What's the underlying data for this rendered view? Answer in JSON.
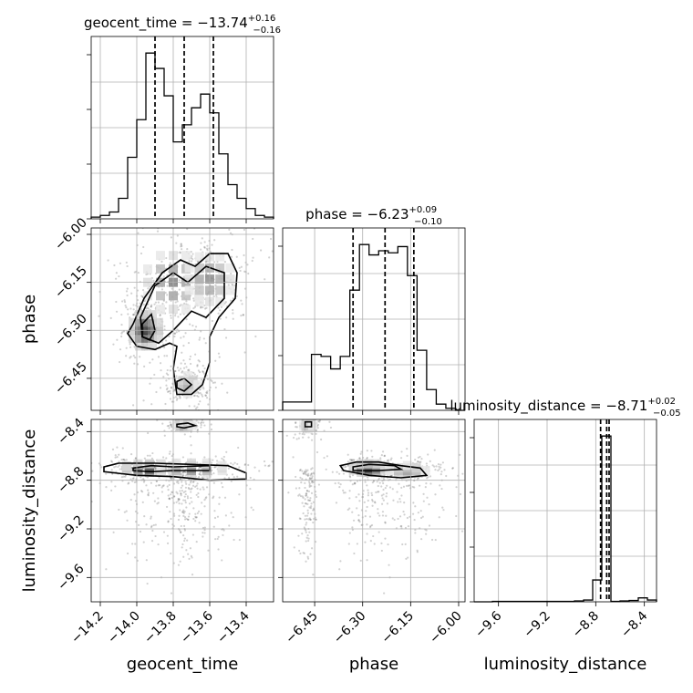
{
  "chart_data": {
    "type": "corner",
    "parameters": [
      {
        "name": "geocent_time",
        "label": "geocent_time",
        "range": [
          -14.25,
          -13.25
        ],
        "ticks": [
          -14.2,
          -14.0,
          -13.8,
          -13.6,
          -13.4
        ],
        "tick_labels": [
          "−14.2",
          "−14.0",
          "−13.8",
          "−13.6",
          "−13.4"
        ],
        "title": {
          "prefix": "geocent_time = ",
          "median": "−13.74",
          "plus": "+0.16",
          "minus": "−0.16"
        },
        "quantiles": [
          -13.9,
          -13.74,
          -13.58
        ],
        "hist_edges": [
          -14.25,
          -14.2,
          -14.15,
          -14.1,
          -14.05,
          -14.0,
          -13.95,
          -13.9,
          -13.85,
          -13.8,
          -13.75,
          -13.7,
          -13.65,
          -13.6,
          -13.55,
          -13.5,
          -13.45,
          -13.4,
          -13.35,
          -13.3,
          -13.25
        ],
        "hist_counts": [
          1,
          2,
          4,
          12,
          36,
          58,
          97,
          88,
          72,
          45,
          55,
          65,
          73,
          62,
          38,
          20,
          12,
          6,
          2,
          1
        ]
      },
      {
        "name": "phase",
        "label": "phase",
        "range": [
          -6.55,
          -5.98
        ],
        "ticks": [
          -6.45,
          -6.3,
          -6.15,
          -6.0
        ],
        "tick_labels": [
          "−6.45",
          "−6.30",
          "−6.15",
          "−6.00"
        ],
        "title": {
          "prefix": "phase = ",
          "median": "−6.23",
          "plus": "+0.09",
          "minus": "−0.10"
        },
        "quantiles": [
          -6.33,
          -6.23,
          -6.14
        ],
        "hist_edges": [
          -6.55,
          -6.52,
          -6.49,
          -6.46,
          -6.43,
          -6.4,
          -6.37,
          -6.34,
          -6.31,
          -6.28,
          -6.25,
          -6.22,
          -6.19,
          -6.16,
          -6.13,
          -6.1,
          -6.07,
          -6.04,
          -6.01,
          -5.98
        ],
        "hist_counts": [
          4,
          4,
          4,
          27,
          26,
          20,
          26,
          58,
          80,
          75,
          77,
          76,
          79,
          65,
          29,
          10,
          3,
          1,
          0
        ]
      },
      {
        "name": "luminosity_distance",
        "label": "luminosity_distance",
        "range": [
          -9.8,
          -8.3
        ],
        "ticks": [
          -9.6,
          -9.2,
          -8.8,
          -8.4
        ],
        "tick_labels": [
          "−9.6",
          "−9.2",
          "−8.8",
          "−8.4"
        ],
        "title": {
          "prefix": "luminosity_distance = ",
          "median": "−8.71",
          "plus": "+0.02",
          "minus": "−0.05"
        },
        "quantiles": [
          -8.76,
          -8.71,
          -8.69
        ],
        "hist_edges": [
          -9.8,
          -9.725,
          -9.65,
          -9.575,
          -9.5,
          -9.425,
          -9.35,
          -9.275,
          -9.2,
          -9.125,
          -9.05,
          -8.975,
          -8.9,
          -8.825,
          -8.75,
          -8.675,
          -8.6,
          -8.525,
          -8.45,
          -8.375,
          -8.3
        ],
        "hist_counts": [
          0,
          0,
          1,
          1,
          1,
          1,
          1,
          1,
          1,
          1,
          1,
          2,
          4,
          50,
          380,
          1,
          2,
          3,
          9,
          4
        ]
      }
    ],
    "pairs": [
      {
        "x": "geocent_time",
        "y": "phase",
        "density_peaks": [
          {
            "x": -13.95,
            "y": -6.3,
            "spread_x": 0.05,
            "spread_y": 0.035,
            "weight": 0.9
          },
          {
            "x": -13.8,
            "y": -6.15,
            "spread_x": 0.1,
            "spread_y": 0.06,
            "weight": 0.55
          },
          {
            "x": -13.6,
            "y": -6.14,
            "spread_x": 0.08,
            "spread_y": 0.05,
            "weight": 0.5
          },
          {
            "x": -13.72,
            "y": -6.47,
            "spread_x": 0.04,
            "spread_y": 0.02,
            "weight": 0.35
          }
        ],
        "contours": [
          [
            [
              -14.02,
              -6.28
            ],
            [
              -13.96,
              -6.2
            ],
            [
              -13.86,
              -6.12
            ],
            [
              -13.76,
              -6.08
            ],
            [
              -13.68,
              -6.1
            ],
            [
              -13.6,
              -6.06
            ],
            [
              -13.5,
              -6.06
            ],
            [
              -13.45,
              -6.12
            ],
            [
              -13.46,
              -6.2
            ],
            [
              -13.55,
              -6.26
            ],
            [
              -13.6,
              -6.32
            ],
            [
              -13.6,
              -6.4
            ],
            [
              -13.64,
              -6.47
            ],
            [
              -13.7,
              -6.5
            ],
            [
              -13.78,
              -6.5
            ],
            [
              -13.8,
              -6.42
            ],
            [
              -13.78,
              -6.35
            ],
            [
              -13.82,
              -6.34
            ],
            [
              -13.9,
              -6.36
            ],
            [
              -14.0,
              -6.35
            ],
            [
              -14.05,
              -6.31
            ]
          ],
          [
            [
              -13.98,
              -6.26
            ],
            [
              -13.9,
              -6.16
            ],
            [
              -13.8,
              -6.12
            ],
            [
              -13.72,
              -6.15
            ],
            [
              -13.62,
              -6.1
            ],
            [
              -13.52,
              -6.12
            ],
            [
              -13.52,
              -6.2
            ],
            [
              -13.62,
              -6.26
            ],
            [
              -13.7,
              -6.24
            ],
            [
              -13.8,
              -6.3
            ],
            [
              -13.88,
              -6.34
            ],
            [
              -13.97,
              -6.32
            ]
          ],
          [
            [
              -13.97,
              -6.28
            ],
            [
              -13.92,
              -6.25
            ],
            [
              -13.9,
              -6.3
            ],
            [
              -13.93,
              -6.33
            ],
            [
              -13.97,
              -6.32
            ]
          ],
          [
            [
              -13.78,
              -6.46
            ],
            [
              -13.74,
              -6.45
            ],
            [
              -13.7,
              -6.47
            ],
            [
              -13.74,
              -6.49
            ],
            [
              -13.78,
              -6.48
            ]
          ]
        ]
      },
      {
        "x": "geocent_time",
        "y": "luminosity_distance",
        "density_peaks": [
          {
            "x": -13.93,
            "y": -8.7,
            "spread_x": 0.09,
            "spread_y": 0.025,
            "weight": 0.9
          },
          {
            "x": -13.7,
            "y": -8.7,
            "spread_x": 0.12,
            "spread_y": 0.03,
            "weight": 0.6
          },
          {
            "x": -13.74,
            "y": -8.35,
            "spread_x": 0.03,
            "spread_y": 0.015,
            "weight": 0.4
          }
        ],
        "contours": [
          [
            [
              -14.18,
              -8.69
            ],
            [
              -14.1,
              -8.66
            ],
            [
              -13.9,
              -8.66
            ],
            [
              -13.7,
              -8.67
            ],
            [
              -13.5,
              -8.68
            ],
            [
              -13.4,
              -8.74
            ],
            [
              -13.4,
              -8.79
            ],
            [
              -13.6,
              -8.8
            ],
            [
              -13.8,
              -8.77
            ],
            [
              -14.0,
              -8.76
            ],
            [
              -14.18,
              -8.73
            ]
          ],
          [
            [
              -14.02,
              -8.7
            ],
            [
              -13.92,
              -8.68
            ],
            [
              -13.8,
              -8.69
            ],
            [
              -13.6,
              -8.68
            ],
            [
              -13.6,
              -8.72
            ],
            [
              -13.8,
              -8.72
            ],
            [
              -13.92,
              -8.73
            ],
            [
              -14.02,
              -8.72
            ]
          ],
          [
            [
              -13.78,
              -8.34
            ],
            [
              -13.72,
              -8.33
            ],
            [
              -13.68,
              -8.35
            ],
            [
              -13.74,
              -8.37
            ],
            [
              -13.78,
              -8.36
            ]
          ]
        ]
      },
      {
        "x": "phase",
        "y": "luminosity_distance",
        "density_peaks": [
          {
            "x": -6.28,
            "y": -8.7,
            "spread_x": 0.035,
            "spread_y": 0.025,
            "weight": 0.9
          },
          {
            "x": -6.16,
            "y": -8.72,
            "spread_x": 0.04,
            "spread_y": 0.03,
            "weight": 0.4
          },
          {
            "x": -6.47,
            "y": -8.35,
            "spread_x": 0.01,
            "spread_y": 0.02,
            "weight": 0.35
          }
        ],
        "contours": [
          [
            [
              -6.37,
              -8.68
            ],
            [
              -6.32,
              -8.65
            ],
            [
              -6.25,
              -8.65
            ],
            [
              -6.18,
              -8.68
            ],
            [
              -6.12,
              -8.7
            ],
            [
              -6.1,
              -8.76
            ],
            [
              -6.18,
              -8.78
            ],
            [
              -6.28,
              -8.76
            ],
            [
              -6.36,
              -8.72
            ]
          ],
          [
            [
              -6.33,
              -8.69
            ],
            [
              -6.28,
              -8.67
            ],
            [
              -6.2,
              -8.68
            ],
            [
              -6.18,
              -8.71
            ],
            [
              -6.25,
              -8.72
            ],
            [
              -6.33,
              -8.72
            ]
          ],
          [
            [
              -6.48,
              -8.32
            ],
            [
              -6.46,
              -8.32
            ],
            [
              -6.46,
              -8.36
            ],
            [
              -6.48,
              -8.36
            ]
          ]
        ]
      }
    ]
  }
}
